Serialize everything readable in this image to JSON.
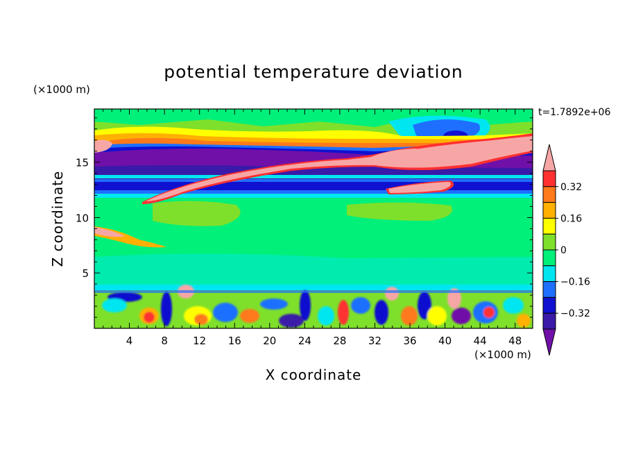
{
  "chart_data": {
    "type": "heatmap",
    "title": "potential temperature deviation",
    "time_label": "t=1.7892e+06",
    "xlabel": "X coordinate",
    "ylabel": "Z coordinate",
    "x_unit": "(×1000 m)",
    "y_unit": "(×1000 m)",
    "xlim": [
      0,
      50
    ],
    "ylim": [
      0,
      19.8
    ],
    "x_ticks": [
      4,
      8,
      12,
      16,
      20,
      24,
      28,
      32,
      36,
      40,
      44,
      48
    ],
    "y_ticks": [
      5,
      10,
      15
    ],
    "colorbar": {
      "levels": [
        -0.4,
        -0.32,
        -0.24,
        -0.16,
        -0.08,
        0,
        0.08,
        0.16,
        0.24,
        0.32,
        0.4
      ],
      "tick_labels": [
        "0.32",
        "0.16",
        "0",
        "−0.16",
        "−0.32"
      ],
      "tick_values": [
        0.32,
        0.16,
        0,
        -0.16,
        -0.32
      ],
      "colors": {
        "over": "#f7a6a6",
        "0.32_0.40": "#ff3030",
        "0.24_0.32": "#ff7a1a",
        "0.16_0.24": "#ffb000",
        "0.08_0.16": "#ffff00",
        "0_0.08": "#7ee02a",
        "-0.08_0": "#00f07a",
        "-0.16_-0.08": "#00e6f0",
        "-0.24_-0.16": "#1f6fff",
        "-0.32_-0.24": "#1010d0",
        "-0.40_-0.32": "#3a1aa8",
        "under": "#7010a8"
      }
    },
    "field_layers": [
      {
        "name": "background",
        "value": -0.05
      },
      {
        "name": "upper-warm-band",
        "z": [
          16,
          19.8
        ],
        "value": 0.05
      },
      {
        "name": "cold-band",
        "z": [
          14,
          16.4
        ],
        "value": -0.38
      },
      {
        "name": "warm-tongue",
        "x": [
          4,
          50
        ],
        "z": [
          11,
          17
        ],
        "value": 0.45
      },
      {
        "name": "lower-cold-band",
        "z": [
          11.6,
          13.8
        ],
        "value": -0.3
      },
      {
        "name": "boundary-layer",
        "z": [
          0,
          3.5
        ],
        "value": "mixed -0.4 to 0.3"
      }
    ]
  }
}
